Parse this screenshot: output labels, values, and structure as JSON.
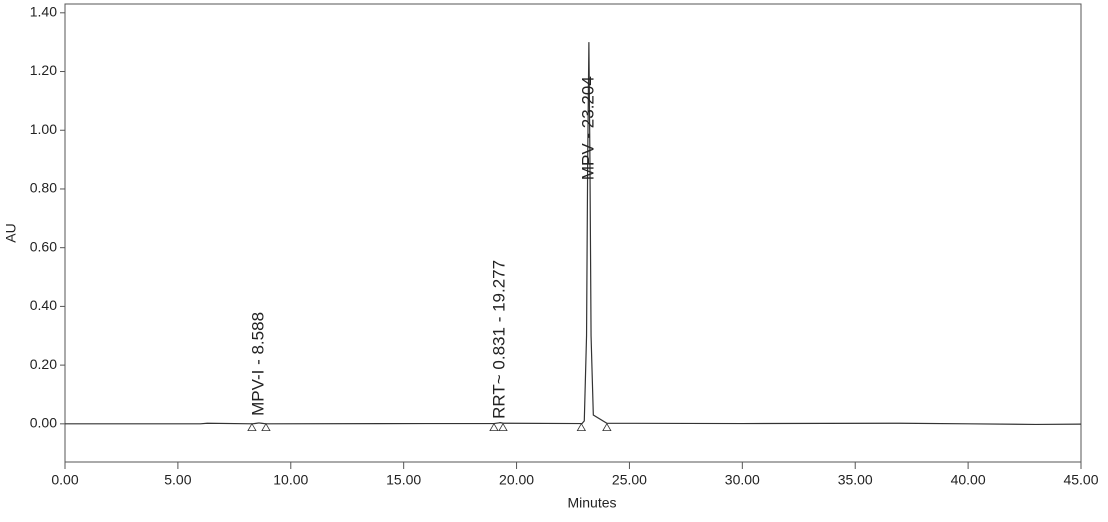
{
  "chart_data": {
    "type": "line",
    "x_label": "Minutes",
    "y_label": "AU",
    "xlim": [
      0,
      45
    ],
    "ylim": [
      -0.13,
      1.43
    ],
    "xticks": [
      {
        "value": 0,
        "label": "0.00"
      },
      {
        "value": 5,
        "label": "5.00"
      },
      {
        "value": 10,
        "label": "10.00"
      },
      {
        "value": 15,
        "label": "15.00"
      },
      {
        "value": 20,
        "label": "20.00"
      },
      {
        "value": 25,
        "label": "25.00"
      },
      {
        "value": 30,
        "label": "30.00"
      },
      {
        "value": 35,
        "label": "35.00"
      },
      {
        "value": 40,
        "label": "40.00"
      },
      {
        "value": 45,
        "label": "45.00"
      }
    ],
    "yticks": [
      {
        "value": 0,
        "label": "0.00"
      },
      {
        "value": 0.2,
        "label": "0.20"
      },
      {
        "value": 0.4,
        "label": "0.40"
      },
      {
        "value": 0.6,
        "label": "0.60"
      },
      {
        "value": 0.8,
        "label": "0.80"
      },
      {
        "value": 1.0,
        "label": "1.00"
      },
      {
        "value": 1.2,
        "label": "1.20"
      },
      {
        "value": 1.4,
        "label": "1.40"
      }
    ],
    "series": [
      {
        "color": "#333333",
        "x": [
          0,
          6,
          6.3,
          8.3,
          8.5,
          8.588,
          8.7,
          8.9,
          16,
          19.0,
          19.2,
          19.277,
          19.4,
          22.9,
          23.0,
          23.1,
          23.15,
          23.204,
          23.25,
          23.3,
          23.4,
          24,
          30,
          37,
          40,
          43,
          45
        ],
        "values": [
          0,
          0,
          0.002,
          0,
          0.002,
          0.003,
          0.002,
          0,
          0.001,
          0.001,
          0.003,
          0.004,
          0.002,
          0.001,
          0.01,
          0.3,
          0.9,
          1.3,
          0.9,
          0.3,
          0.03,
          0.002,
          0.001,
          0.002,
          0,
          -0.002,
          -0.001
        ]
      }
    ],
    "markers": {
      "color": "#333333",
      "x": [
        8.28,
        8.9,
        19.0,
        19.4,
        22.87,
        24.0
      ],
      "values": [
        -0.013,
        -0.013,
        -0.013,
        -0.013,
        -0.013,
        -0.013
      ]
    },
    "annotations": [
      {
        "text": "MPV-I - 8.588",
        "x": 8.588,
        "y": 0.027
      },
      {
        "text": "RRT~ 0.831 - 19.277",
        "x": 19.277,
        "y": 0.017
      },
      {
        "text": "MPV - 23.204",
        "x": 23.204,
        "y": 0.83
      }
    ]
  }
}
